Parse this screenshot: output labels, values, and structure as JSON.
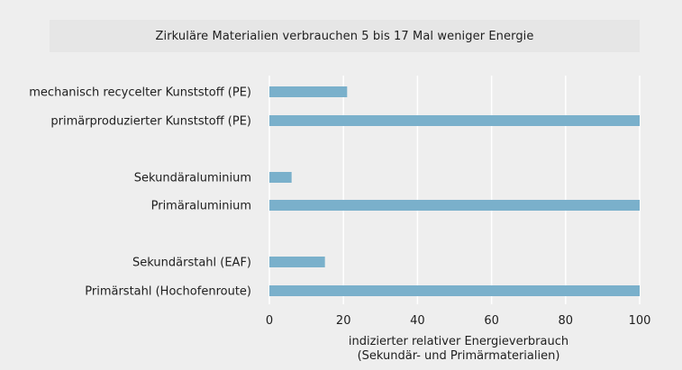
{
  "chart_data": {
    "type": "bar",
    "orientation": "horizontal",
    "title": "Zirkuläre Materialien verbrauchen 5 bis 17 Mal weniger Energie",
    "xlabel_lines": [
      "indizierter relativer Energieverbrauch",
      "(Sekundär- und Primärmaterialien)"
    ],
    "xlim": [
      0,
      100
    ],
    "xticks": [
      0,
      20,
      40,
      60,
      80,
      100
    ],
    "grid": "vertical",
    "bar_color": "#7ab0cb",
    "categories": [
      "mechanisch recycelter Kunststoff (PE)",
      "primärproduzierter Kunststoff (PE)",
      "Sekundäraluminium",
      "Primäraluminium",
      "Sekundärstahl (EAF)",
      "Primärstahl (Hochofenroute)"
    ],
    "values": [
      21,
      100,
      6,
      100,
      15,
      100
    ],
    "groups": [
      [
        0,
        1
      ],
      [
        2,
        3
      ],
      [
        4,
        5
      ]
    ]
  }
}
